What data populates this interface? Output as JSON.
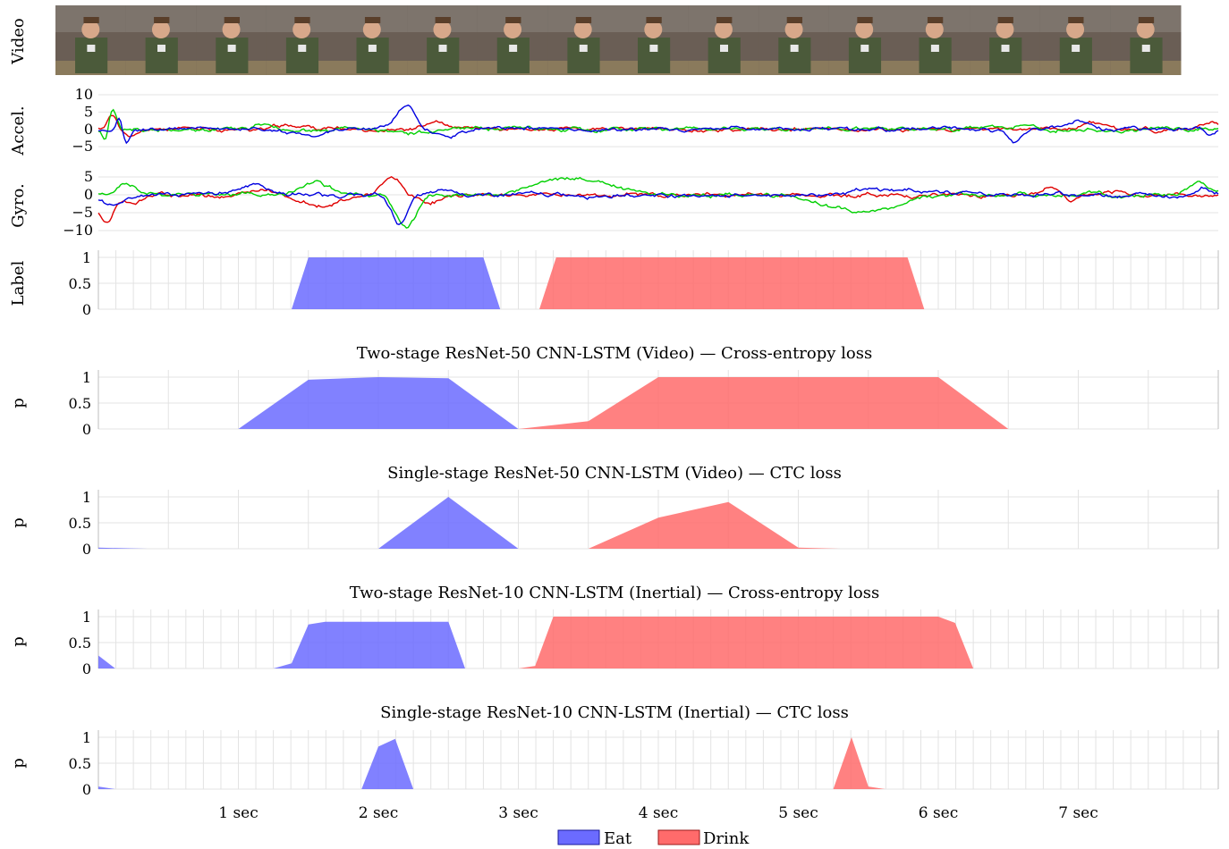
{
  "colors": {
    "eat": "#6b6bff",
    "drink": "#ff6b6b",
    "accel_x": "#e00000",
    "accel_y": "#00d000",
    "accel_z": "#0000e0",
    "grid": "#e3e3e3",
    "axis": "#bdbdbd",
    "video_frame": "#6f6258"
  },
  "rows": {
    "video_label": "Video",
    "accel_label": "Accel.",
    "gyro_label": "Gyro.",
    "label_label": "Label",
    "p_label": "p"
  },
  "video": {
    "frame_count": 16
  },
  "accel": {
    "ylim": [
      -6.5,
      10.5
    ],
    "ytick_labels": [
      "10",
      "5",
      "0",
      "−5"
    ],
    "yticks": [
      10,
      5,
      0,
      -5
    ]
  },
  "gyro": {
    "ylim": [
      -11,
      6.5
    ],
    "ytick_labels": [
      "5",
      "0",
      "−5",
      "−10"
    ],
    "yticks": [
      5,
      0,
      -5,
      -10
    ]
  },
  "chart_data": {
    "type": "area",
    "x_unit": "sec",
    "xlim": [
      0,
      8
    ],
    "x_ticks": [
      1,
      2,
      3,
      4,
      5,
      6,
      7
    ],
    "x_tick_labels": [
      "1 sec",
      "2 sec",
      "3 sec",
      "4 sec",
      "5 sec",
      "6 sec",
      "7 sec"
    ],
    "ylim": [
      0,
      1
    ],
    "y_ticks": [
      1,
      0.5,
      0
    ],
    "y_tick_labels": [
      "1",
      "0.5",
      "0"
    ],
    "legend": [
      {
        "name": "Eat",
        "color": "#6b6bff"
      },
      {
        "name": "Drink",
        "color": "#ff6b6b"
      }
    ],
    "panels": [
      {
        "id": "label",
        "title": "",
        "fine_grid": true,
        "series": [
          {
            "name": "Eat",
            "points": [
              [
                1.38,
                0
              ],
              [
                1.5,
                1
              ],
              [
                2.75,
                1
              ],
              [
                2.87,
                0
              ]
            ]
          },
          {
            "name": "Drink",
            "points": [
              [
                3.15,
                0
              ],
              [
                3.27,
                1
              ],
              [
                5.78,
                1
              ],
              [
                5.9,
                0
              ]
            ]
          }
        ]
      },
      {
        "id": "two-stage-video-ce",
        "title": "Two-stage ResNet-50 CNN-LSTM (Video) — Cross-entropy loss",
        "fine_grid": false,
        "series": [
          {
            "name": "Eat",
            "points": [
              [
                1.0,
                0
              ],
              [
                1.5,
                0.95
              ],
              [
                2.0,
                1.0
              ],
              [
                2.5,
                0.98
              ],
              [
                3.0,
                0
              ]
            ]
          },
          {
            "name": "Drink",
            "points": [
              [
                3.0,
                0
              ],
              [
                3.5,
                0.15
              ],
              [
                4.0,
                1.0
              ],
              [
                6.0,
                1.0
              ],
              [
                6.5,
                0
              ]
            ]
          }
        ]
      },
      {
        "id": "single-stage-video-ctc",
        "title": "Single-stage ResNet-50 CNN-LSTM (Video) — CTC loss",
        "fine_grid": false,
        "series": [
          {
            "name": "Eat",
            "points": [
              [
                0.0,
                0.02
              ],
              [
                0.35,
                0
              ],
              [
                2.0,
                0
              ],
              [
                2.5,
                1.0
              ],
              [
                3.0,
                0
              ]
            ]
          },
          {
            "name": "Drink",
            "points": [
              [
                3.5,
                0
              ],
              [
                4.0,
                0.6
              ],
              [
                4.5,
                0.9
              ],
              [
                5.0,
                0.02
              ],
              [
                5.3,
                0
              ]
            ]
          }
        ]
      },
      {
        "id": "two-stage-inertial-ce",
        "title": "Two-stage ResNet-10 CNN-LSTM (Inertial) — Cross-entropy loss",
        "fine_grid": true,
        "series": [
          {
            "name": "Eat",
            "points": [
              [
                0.0,
                0.25
              ],
              [
                0.12,
                0
              ],
              [
                1.25,
                0
              ],
              [
                1.38,
                0.1
              ],
              [
                1.5,
                0.85
              ],
              [
                1.62,
                0.9
              ],
              [
                2.5,
                0.9
              ],
              [
                2.62,
                0
              ]
            ]
          },
          {
            "name": "Drink",
            "points": [
              [
                3.0,
                0
              ],
              [
                3.12,
                0.05
              ],
              [
                3.25,
                1.0
              ],
              [
                6.0,
                1.0
              ],
              [
                6.12,
                0.88
              ],
              [
                6.25,
                0
              ]
            ]
          }
        ]
      },
      {
        "id": "single-stage-inertial-ctc",
        "title": "Single-stage ResNet-10 CNN-LSTM (Inertial) — CTC loss",
        "fine_grid": true,
        "series": [
          {
            "name": "Eat",
            "points": [
              [
                0.0,
                0.05
              ],
              [
                0.12,
                0
              ],
              [
                1.88,
                0
              ],
              [
                2.0,
                0.82
              ],
              [
                2.12,
                0.97
              ],
              [
                2.25,
                0
              ]
            ]
          },
          {
            "name": "Drink",
            "points": [
              [
                5.25,
                0
              ],
              [
                5.38,
                1.0
              ],
              [
                5.5,
                0.05
              ],
              [
                5.62,
                0
              ]
            ]
          }
        ]
      }
    ]
  }
}
